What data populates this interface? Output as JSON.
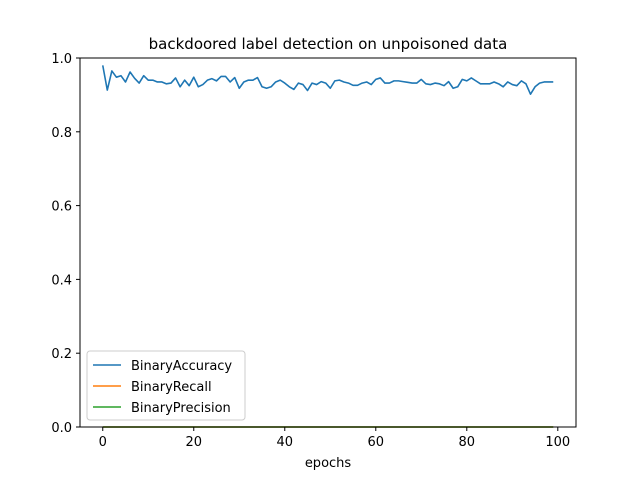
{
  "chart_data": {
    "type": "line",
    "title": "backdoored label detection on unpoisoned data",
    "xlabel": "epochs",
    "ylabel": "",
    "xlim": [
      -5,
      104
    ],
    "ylim": [
      0,
      1.0
    ],
    "xticks": [
      0,
      20,
      40,
      60,
      80,
      100
    ],
    "yticks": [
      0.0,
      0.2,
      0.4,
      0.6,
      0.8,
      1.0
    ],
    "grid": false,
    "legend_position": "lower-left",
    "series": [
      {
        "name": "BinaryAccuracy",
        "color": "#1f77b4",
        "x": [
          0,
          1,
          2,
          3,
          4,
          5,
          6,
          7,
          8,
          9,
          10,
          11,
          12,
          13,
          14,
          15,
          16,
          17,
          18,
          19,
          20,
          21,
          22,
          23,
          24,
          25,
          26,
          27,
          28,
          29,
          30,
          31,
          32,
          33,
          34,
          35,
          36,
          37,
          38,
          39,
          40,
          41,
          42,
          43,
          44,
          45,
          46,
          47,
          48,
          49,
          50,
          51,
          52,
          53,
          54,
          55,
          56,
          57,
          58,
          59,
          60,
          61,
          62,
          63,
          64,
          65,
          66,
          67,
          68,
          69,
          70,
          71,
          72,
          73,
          74,
          75,
          76,
          77,
          78,
          79,
          80,
          81,
          82,
          83,
          84,
          85,
          86,
          87,
          88,
          89,
          90,
          91,
          92,
          93,
          94,
          95,
          96,
          97,
          98,
          99
        ],
        "values": [
          0.98,
          0.913,
          0.965,
          0.948,
          0.952,
          0.935,
          0.962,
          0.945,
          0.932,
          0.952,
          0.94,
          0.94,
          0.935,
          0.935,
          0.93,
          0.932,
          0.946,
          0.922,
          0.94,
          0.925,
          0.948,
          0.922,
          0.928,
          0.94,
          0.944,
          0.938,
          0.95,
          0.95,
          0.935,
          0.947,
          0.918,
          0.935,
          0.94,
          0.94,
          0.947,
          0.922,
          0.918,
          0.922,
          0.935,
          0.94,
          0.932,
          0.922,
          0.915,
          0.932,
          0.928,
          0.912,
          0.932,
          0.928,
          0.936,
          0.932,
          0.918,
          0.938,
          0.94,
          0.935,
          0.932,
          0.926,
          0.926,
          0.932,
          0.935,
          0.928,
          0.942,
          0.946,
          0.932,
          0.932,
          0.938,
          0.938,
          0.936,
          0.934,
          0.932,
          0.932,
          0.942,
          0.93,
          0.928,
          0.932,
          0.93,
          0.925,
          0.936,
          0.918,
          0.922,
          0.942,
          0.938,
          0.946,
          0.938,
          0.93,
          0.93,
          0.93,
          0.935,
          0.93,
          0.922,
          0.935,
          0.928,
          0.925,
          0.938,
          0.93,
          0.902,
          0.922,
          0.932,
          0.935,
          0.935,
          0.935
        ]
      },
      {
        "name": "BinaryRecall",
        "color": "#ff7f0e",
        "x": [
          0,
          99
        ],
        "values": [
          0.0,
          0.0
        ]
      },
      {
        "name": "BinaryPrecision",
        "color": "#2ca02c",
        "x": [
          0,
          99
        ],
        "values": [
          0.0,
          0.0
        ]
      }
    ]
  }
}
